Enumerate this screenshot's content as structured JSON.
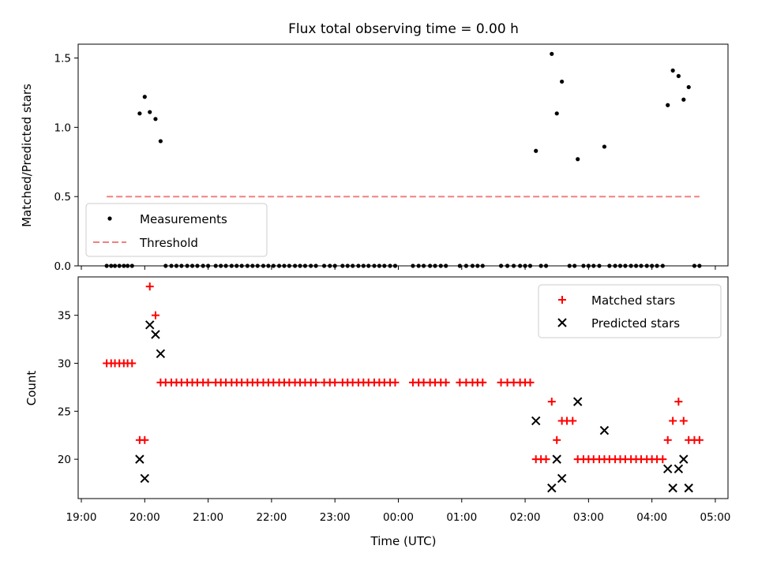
{
  "chart_data": [
    {
      "type": "scatter",
      "title": "Flux total observing time = 0.00 h",
      "xlabel": "",
      "ylabel": "Matched/Predicted stars",
      "ylim": [
        0,
        1.6
      ],
      "y_ticks": [
        "0.0",
        "0.5",
        "1.0",
        "1.5"
      ],
      "x_unit": "hours after 19:00 UTC",
      "xlim": [
        -0.05,
        10.2
      ],
      "legend": {
        "position": "lower-left",
        "entries": [
          "Measurements",
          "Threshold"
        ]
      },
      "threshold": {
        "name": "Threshold",
        "value": 0.5,
        "x_range": [
          0.4,
          9.75
        ],
        "color": "#f08080"
      },
      "series": [
        {
          "name": "Measurements",
          "color": "#000000",
          "points": [
            [
              0.4,
              0
            ],
            [
              0.47,
              0
            ],
            [
              0.53,
              0
            ],
            [
              0.6,
              0
            ],
            [
              0.67,
              0
            ],
            [
              0.73,
              0
            ],
            [
              0.8,
              0
            ],
            [
              0.92,
              1.1
            ],
            [
              1.0,
              1.22
            ],
            [
              1.08,
              1.11
            ],
            [
              1.17,
              1.06
            ],
            [
              1.25,
              0.9
            ],
            [
              1.33,
              0
            ],
            [
              1.42,
              0
            ],
            [
              1.5,
              0
            ],
            [
              1.58,
              0
            ],
            [
              1.67,
              0
            ],
            [
              1.75,
              0
            ],
            [
              1.83,
              0
            ],
            [
              1.92,
              0
            ],
            [
              2.0,
              0
            ],
            [
              2.12,
              0
            ],
            [
              2.2,
              0
            ],
            [
              2.28,
              0
            ],
            [
              2.37,
              0
            ],
            [
              2.45,
              0
            ],
            [
              2.53,
              0
            ],
            [
              2.62,
              0
            ],
            [
              2.7,
              0
            ],
            [
              2.78,
              0
            ],
            [
              2.87,
              0
            ],
            [
              2.95,
              0
            ],
            [
              3.03,
              0
            ],
            [
              3.12,
              0
            ],
            [
              3.2,
              0
            ],
            [
              3.28,
              0
            ],
            [
              3.37,
              0
            ],
            [
              3.45,
              0
            ],
            [
              3.53,
              0
            ],
            [
              3.62,
              0
            ],
            [
              3.7,
              0
            ],
            [
              3.83,
              0
            ],
            [
              3.92,
              0
            ],
            [
              4.0,
              0
            ],
            [
              4.12,
              0
            ],
            [
              4.2,
              0
            ],
            [
              4.28,
              0
            ],
            [
              4.37,
              0
            ],
            [
              4.45,
              0
            ],
            [
              4.53,
              0
            ],
            [
              4.62,
              0
            ],
            [
              4.7,
              0
            ],
            [
              4.78,
              0
            ],
            [
              4.87,
              0
            ],
            [
              4.95,
              0
            ],
            [
              5.23,
              0
            ],
            [
              5.32,
              0
            ],
            [
              5.4,
              0
            ],
            [
              5.5,
              0
            ],
            [
              5.58,
              0
            ],
            [
              5.67,
              0
            ],
            [
              5.75,
              0
            ],
            [
              5.97,
              0
            ],
            [
              6.07,
              0
            ],
            [
              6.17,
              0
            ],
            [
              6.25,
              0
            ],
            [
              6.33,
              0
            ],
            [
              6.62,
              0
            ],
            [
              6.72,
              0
            ],
            [
              6.82,
              0
            ],
            [
              6.92,
              0
            ],
            [
              7.0,
              0
            ],
            [
              7.08,
              0
            ],
            [
              7.17,
              0.83
            ],
            [
              7.25,
              0
            ],
            [
              7.33,
              0
            ],
            [
              7.42,
              1.53
            ],
            [
              7.5,
              1.1
            ],
            [
              7.58,
              1.33
            ],
            [
              7.7,
              0
            ],
            [
              7.78,
              0
            ],
            [
              7.83,
              0.77
            ],
            [
              7.92,
              0
            ],
            [
              8.0,
              0
            ],
            [
              8.08,
              0
            ],
            [
              8.17,
              0
            ],
            [
              8.25,
              0.86
            ],
            [
              8.33,
              0
            ],
            [
              8.42,
              0
            ],
            [
              8.5,
              0
            ],
            [
              8.58,
              0
            ],
            [
              8.67,
              0
            ],
            [
              8.75,
              0
            ],
            [
              8.83,
              0
            ],
            [
              8.92,
              0
            ],
            [
              9.0,
              0
            ],
            [
              9.08,
              0
            ],
            [
              9.17,
              0
            ],
            [
              9.25,
              1.16
            ],
            [
              9.33,
              1.41
            ],
            [
              9.42,
              1.37
            ],
            [
              9.5,
              1.2
            ],
            [
              9.58,
              1.29
            ],
            [
              9.67,
              0
            ],
            [
              9.75,
              0
            ]
          ]
        }
      ]
    },
    {
      "type": "scatter",
      "title": "",
      "xlabel": "Time (UTC)",
      "ylabel": "Count",
      "ylim": [
        15.9,
        39.0
      ],
      "y_ticks": [
        "20",
        "25",
        "30",
        "35"
      ],
      "x_unit": "hours after 19:00 UTC",
      "xlim": [
        -0.05,
        10.2
      ],
      "x_ticks": [
        "19:00",
        "20:00",
        "21:00",
        "22:00",
        "23:00",
        "00:00",
        "01:00",
        "02:00",
        "03:00",
        "04:00",
        "05:00"
      ],
      "legend": {
        "position": "upper-right",
        "entries": [
          "Matched stars",
          "Predicted stars"
        ]
      },
      "series": [
        {
          "name": "Matched stars",
          "marker": "plus",
          "color": "#ff0000",
          "points": [
            [
              0.4,
              30
            ],
            [
              0.47,
              30
            ],
            [
              0.53,
              30
            ],
            [
              0.6,
              30
            ],
            [
              0.67,
              30
            ],
            [
              0.73,
              30
            ],
            [
              0.8,
              30
            ],
            [
              0.92,
              22
            ],
            [
              1.0,
              22
            ],
            [
              1.08,
              38
            ],
            [
              1.17,
              35
            ],
            [
              1.25,
              28
            ],
            [
              1.33,
              28
            ],
            [
              1.42,
              28
            ],
            [
              1.5,
              28
            ],
            [
              1.58,
              28
            ],
            [
              1.67,
              28
            ],
            [
              1.75,
              28
            ],
            [
              1.83,
              28
            ],
            [
              1.92,
              28
            ],
            [
              2.0,
              28
            ],
            [
              2.12,
              28
            ],
            [
              2.2,
              28
            ],
            [
              2.28,
              28
            ],
            [
              2.37,
              28
            ],
            [
              2.45,
              28
            ],
            [
              2.53,
              28
            ],
            [
              2.62,
              28
            ],
            [
              2.7,
              28
            ],
            [
              2.78,
              28
            ],
            [
              2.87,
              28
            ],
            [
              2.95,
              28
            ],
            [
              3.03,
              28
            ],
            [
              3.12,
              28
            ],
            [
              3.2,
              28
            ],
            [
              3.28,
              28
            ],
            [
              3.37,
              28
            ],
            [
              3.45,
              28
            ],
            [
              3.53,
              28
            ],
            [
              3.62,
              28
            ],
            [
              3.7,
              28
            ],
            [
              3.83,
              28
            ],
            [
              3.92,
              28
            ],
            [
              4.0,
              28
            ],
            [
              4.12,
              28
            ],
            [
              4.2,
              28
            ],
            [
              4.28,
              28
            ],
            [
              4.37,
              28
            ],
            [
              4.45,
              28
            ],
            [
              4.53,
              28
            ],
            [
              4.62,
              28
            ],
            [
              4.7,
              28
            ],
            [
              4.78,
              28
            ],
            [
              4.87,
              28
            ],
            [
              4.95,
              28
            ],
            [
              5.23,
              28
            ],
            [
              5.32,
              28
            ],
            [
              5.4,
              28
            ],
            [
              5.5,
              28
            ],
            [
              5.58,
              28
            ],
            [
              5.67,
              28
            ],
            [
              5.75,
              28
            ],
            [
              5.97,
              28
            ],
            [
              6.07,
              28
            ],
            [
              6.17,
              28
            ],
            [
              6.25,
              28
            ],
            [
              6.33,
              28
            ],
            [
              6.62,
              28
            ],
            [
              6.72,
              28
            ],
            [
              6.82,
              28
            ],
            [
              6.92,
              28
            ],
            [
              7.0,
              28
            ],
            [
              7.08,
              28
            ],
            [
              7.17,
              20
            ],
            [
              7.25,
              20
            ],
            [
              7.33,
              20
            ],
            [
              7.42,
              26
            ],
            [
              7.5,
              22
            ],
            [
              7.58,
              24
            ],
            [
              7.66,
              24
            ],
            [
              7.75,
              24
            ],
            [
              7.83,
              20
            ],
            [
              7.92,
              20
            ],
            [
              8.0,
              20
            ],
            [
              8.08,
              20
            ],
            [
              8.17,
              20
            ],
            [
              8.25,
              20
            ],
            [
              8.33,
              20
            ],
            [
              8.42,
              20
            ],
            [
              8.5,
              20
            ],
            [
              8.58,
              20
            ],
            [
              8.67,
              20
            ],
            [
              8.75,
              20
            ],
            [
              8.83,
              20
            ],
            [
              8.92,
              20
            ],
            [
              9.0,
              20
            ],
            [
              9.08,
              20
            ],
            [
              9.17,
              20
            ],
            [
              9.25,
              22
            ],
            [
              9.33,
              24
            ],
            [
              9.42,
              26
            ],
            [
              9.5,
              24
            ],
            [
              9.58,
              22
            ],
            [
              9.67,
              22
            ],
            [
              9.75,
              22
            ]
          ]
        },
        {
          "name": "Predicted stars",
          "marker": "x",
          "color": "#000000",
          "points": [
            [
              0.92,
              20
            ],
            [
              1.0,
              18
            ],
            [
              1.08,
              34
            ],
            [
              1.17,
              33
            ],
            [
              1.25,
              31
            ],
            [
              7.17,
              24
            ],
            [
              7.42,
              17
            ],
            [
              7.5,
              20
            ],
            [
              7.58,
              18
            ],
            [
              7.83,
              26
            ],
            [
              8.25,
              23
            ],
            [
              9.25,
              19
            ],
            [
              9.33,
              17
            ],
            [
              9.42,
              19
            ],
            [
              9.5,
              20
            ],
            [
              9.58,
              17
            ]
          ]
        }
      ]
    }
  ]
}
